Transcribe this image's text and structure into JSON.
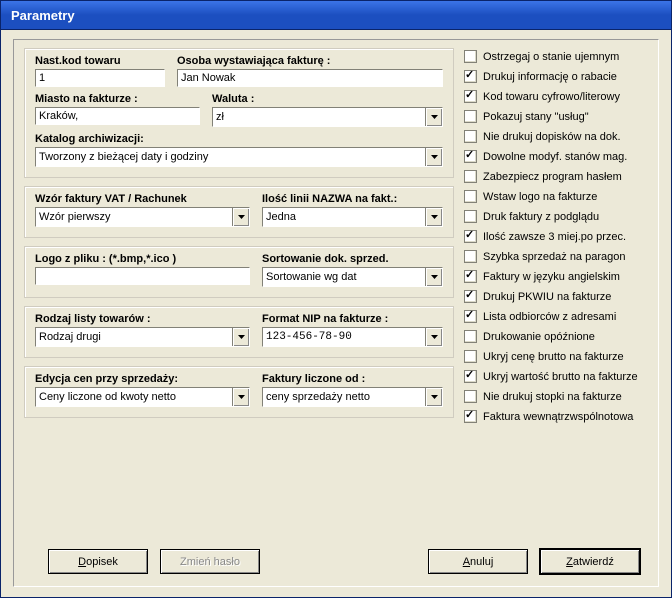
{
  "window": {
    "title": "Parametry"
  },
  "left": {
    "group1": {
      "nast_label": "Nast.kod towaru",
      "nast_value": "1",
      "osoba_label": "Osoba wystawiająca fakturę :",
      "osoba_value": "Jan Nowak",
      "miasto_label": "Miasto na fakturze :",
      "miasto_value": "Kraków,",
      "waluta_label": "Waluta :",
      "waluta_value": "zł",
      "katalog_label": "Katalog archiwizacji:",
      "katalog_value": "Tworzony z bieżącej daty i godziny"
    },
    "group2": {
      "wzor_label": "Wzór faktury VAT / Rachunek",
      "wzor_value": "Wzór pierwszy",
      "ilosc_label": "Ilość linii NAZWA na fakt.:",
      "ilosc_value": "Jedna"
    },
    "group3": {
      "logo_label": "Logo z pliku : (*.bmp,*.ico )",
      "logo_value": "",
      "sort_label": "Sortowanie dok. sprzed.",
      "sort_value": "Sortowanie wg dat"
    },
    "group4": {
      "rodzaj_label": "Rodzaj listy towarów :",
      "rodzaj_value": "Rodzaj drugi",
      "nip_label": "Format NIP na fakturze :",
      "nip_value": "123-456-78-90"
    },
    "group5": {
      "edycja_label": "Edycja cen przy sprzedaży:",
      "edycja_value": "Ceny liczone od kwoty netto",
      "faktury_label": "Faktury liczone od :",
      "faktury_value": "ceny sprzedaży netto"
    }
  },
  "checks": [
    {
      "label": "Ostrzegaj o stanie ujemnym",
      "checked": false
    },
    {
      "label": "Drukuj informację o rabacie",
      "checked": true
    },
    {
      "label": "Kod towaru cyfrowo/literowy",
      "checked": true
    },
    {
      "label": "Pokazuj stany \"usług\"",
      "checked": false
    },
    {
      "label": "Nie drukuj dopisków  na dok.",
      "checked": false
    },
    {
      "label": "Dowolne modyf. stanów mag.",
      "checked": true
    },
    {
      "label": "Zabezpiecz program hasłem",
      "checked": false
    },
    {
      "label": "Wstaw logo na fakturze",
      "checked": false
    },
    {
      "label": "Druk faktury z podglądu",
      "checked": false
    },
    {
      "label": "Ilość zawsze 3 miej.po przec.",
      "checked": true
    },
    {
      "label": "Szybka sprzedaż na paragon",
      "checked": false
    },
    {
      "label": "Faktury w języku angielskim",
      "checked": true
    },
    {
      "label": "Drukuj PKWIU na fakturze",
      "checked": true
    },
    {
      "label": "Lista odbiorców z adresami",
      "checked": true
    },
    {
      "label": "Drukowanie opóźnione",
      "checked": false
    },
    {
      "label": "Ukryj cenę brutto na fakturze",
      "checked": false
    },
    {
      "label": "Ukryj wartość brutto na fakturze",
      "checked": true
    },
    {
      "label": "Nie drukuj stopki na fakturze",
      "checked": false
    },
    {
      "label": "Faktura wewnątrzwspólnotowa",
      "checked": true
    }
  ],
  "buttons": {
    "dopisek": "Dopisek",
    "zmien": "Zmień hasło",
    "anuluj": "Anuluj",
    "zatwierdz": "Zatwierdź"
  }
}
